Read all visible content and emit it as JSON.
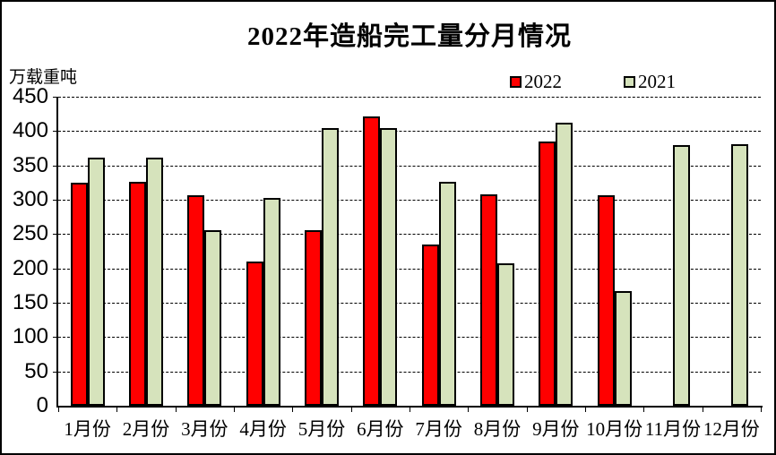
{
  "window": {
    "background_color": "#FFFFFF",
    "border_color": "#000000"
  },
  "chart_data": {
    "type": "bar",
    "title": "2022年造船完工量分月情况",
    "ylabel": "万载重吨",
    "xlabel": "",
    "categories": [
      "1月份",
      "2月份",
      "3月份",
      "4月份",
      "5月份",
      "6月份",
      "7月份",
      "8月份",
      "9月份",
      "10月份",
      "11月份",
      "12月份"
    ],
    "series": [
      {
        "name": "2022",
        "color": "#FF0000",
        "values": [
          325,
          326,
          307,
          210,
          256,
          421,
          235,
          308,
          385,
          307,
          null,
          null
        ]
      },
      {
        "name": "2021",
        "color": "#D6E3BC",
        "values": [
          361,
          361,
          256,
          302,
          404,
          405,
          326,
          208,
          412,
          167,
          380,
          381
        ]
      }
    ],
    "ylim": [
      0,
      450
    ],
    "ytick_step": 50,
    "ytick_labels": [
      "0",
      "50",
      "100",
      "150",
      "200",
      "250",
      "300",
      "350",
      "400",
      "450"
    ],
    "grid": "horizontal-dashed",
    "legend_position": "top-right",
    "bar_border_color": "#000000"
  }
}
